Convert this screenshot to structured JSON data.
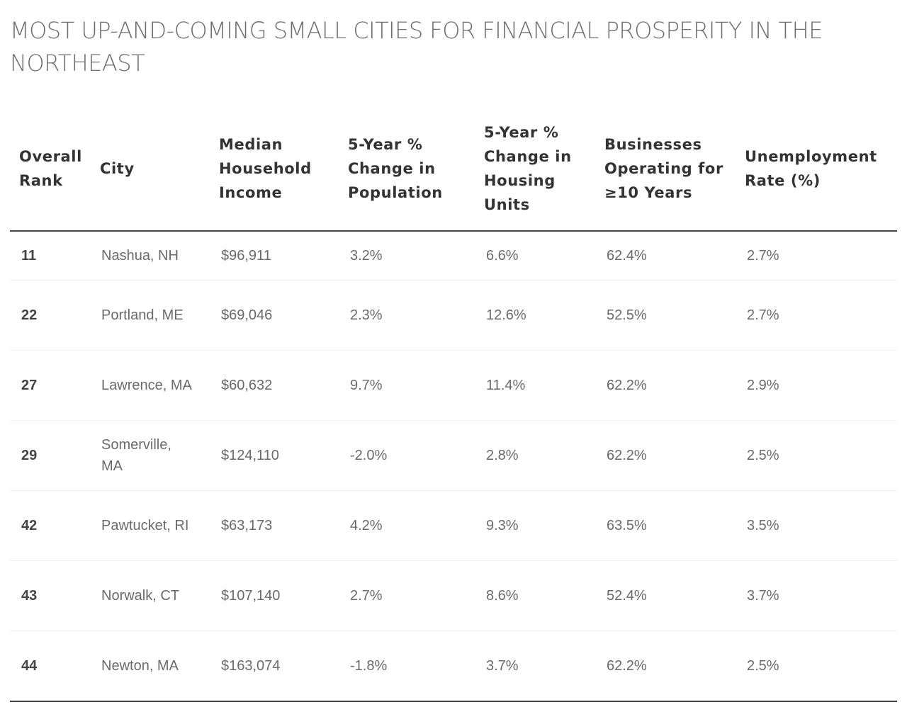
{
  "title": "Most Up-and-Coming Small Cities for Financial Prosperity in the Northeast",
  "columns": [
    "Overall Rank",
    "City",
    "Median Household Income",
    "5-Year % Change in Population",
    "5-Year % Change in Housing Units",
    "Businesses Operating for ≥10 Years",
    "Unemployment Rate (%)"
  ],
  "rows": [
    [
      "11",
      "Nashua, NH",
      "$96,911",
      "3.2%",
      "6.6%",
      "62.4%",
      "2.7%"
    ],
    [
      "22",
      "Portland, ME",
      "$69,046",
      "2.3%",
      "12.6%",
      "52.5%",
      "2.7%"
    ],
    [
      "27",
      "Lawrence, MA",
      "$60,632",
      "9.7%",
      "11.4%",
      "62.2%",
      "2.9%"
    ],
    [
      "29",
      "Somerville, MA",
      "$124,110",
      "-2.0%",
      "2.8%",
      "62.2%",
      "2.5%"
    ],
    [
      "42",
      "Pawtucket, RI",
      "$63,173",
      "4.2%",
      "9.3%",
      "63.5%",
      "3.5%"
    ],
    [
      "43",
      "Norwalk, CT",
      "$107,140",
      "2.7%",
      "8.6%",
      "52.4%",
      "3.7%"
    ],
    [
      "44",
      "Newton, MA",
      "$163,074",
      "-1.8%",
      "3.7%",
      "62.2%",
      "2.5%"
    ]
  ]
}
